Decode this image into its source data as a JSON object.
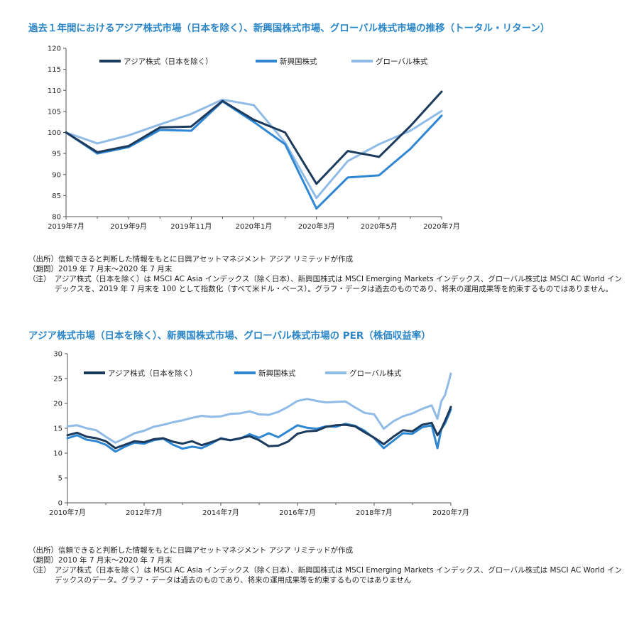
{
  "colors": {
    "asia": "#1b3a5c",
    "em": "#2f86d2",
    "global": "#8fbbe6",
    "title": "#2b86c8",
    "axis": "#555555"
  },
  "chart_data": [
    {
      "type": "line",
      "title": "過去１年間におけるアジア株式市場（日本を除く）、新興国株式市場、グローバル株式市場の推移（トータル・リターン）",
      "xlabel": "",
      "ylabel": "",
      "ylim": [
        80,
        120
      ],
      "yticks": [
        80,
        85,
        90,
        95,
        100,
        105,
        110,
        115,
        120
      ],
      "x_tick_labels": [
        "2019年7月",
        "2019年9月",
        "2019年11月",
        "2020年1月",
        "2020年3月",
        "2020年5月",
        "2020年7月"
      ],
      "x": [
        "2019-07",
        "2019-08",
        "2019-09",
        "2019-10",
        "2019-11",
        "2019-12",
        "2020-01",
        "2020-02",
        "2020-03",
        "2020-04",
        "2020-05",
        "2020-06",
        "2020-07"
      ],
      "legend_position": "top",
      "grid": false,
      "series": [
        {
          "name": "アジア株式（日本を除く）",
          "color_key": "asia",
          "values": [
            100,
            95.3,
            96.8,
            101.2,
            101.4,
            107.5,
            103.0,
            100.0,
            87.8,
            95.6,
            94.2,
            101.5,
            109.7
          ]
        },
        {
          "name": "新興国株式",
          "color_key": "em",
          "values": [
            100,
            95.0,
            96.5,
            100.6,
            100.4,
            107.4,
            102.5,
            97.2,
            81.9,
            89.3,
            89.8,
            96.1,
            104.0
          ]
        },
        {
          "name": "グローバル株式",
          "color_key": "global",
          "values": [
            100,
            97.4,
            99.3,
            101.9,
            104.4,
            107.8,
            106.5,
            97.6,
            84.4,
            93.2,
            97.2,
            100.4,
            105.1
          ]
        }
      ]
    },
    {
      "type": "line",
      "title": "アジア株式市場（日本を除く）、新興国株式市場、グローバル株式市場の PER（株価収益率）",
      "xlabel": "",
      "ylabel": "",
      "ylim": [
        0,
        30
      ],
      "yticks": [
        0,
        5,
        10,
        15,
        20,
        25,
        30
      ],
      "x_tick_labels": [
        "2010年7月",
        "2012年7月",
        "2014年7月",
        "2016年7月",
        "2018年7月",
        "2020年7月"
      ],
      "x": [
        2010.5,
        2010.75,
        2011.0,
        2011.25,
        2011.5,
        2011.75,
        2012.0,
        2012.25,
        2012.5,
        2012.75,
        2013.0,
        2013.25,
        2013.5,
        2013.75,
        2014.0,
        2014.25,
        2014.5,
        2014.75,
        2015.0,
        2015.25,
        2015.5,
        2015.75,
        2016.0,
        2016.25,
        2016.5,
        2016.75,
        2017.0,
        2017.25,
        2017.5,
        2017.75,
        2018.0,
        2018.25,
        2018.5,
        2018.75,
        2019.0,
        2019.25,
        2019.5,
        2019.75,
        2020.0,
        2020.15,
        2020.25,
        2020.35,
        2020.45,
        2020.5
      ],
      "legend_position": "top",
      "grid": false,
      "series": [
        {
          "name": "アジア株式（日本を除く）",
          "color_key": "asia",
          "values": [
            13.6,
            14.1,
            13.3,
            13.0,
            12.4,
            11.0,
            11.7,
            12.4,
            12.2,
            12.8,
            13.0,
            12.3,
            11.9,
            12.4,
            11.6,
            12.2,
            12.9,
            12.6,
            13.0,
            13.4,
            12.6,
            11.4,
            11.5,
            12.3,
            13.9,
            14.4,
            14.5,
            15.3,
            15.6,
            15.7,
            15.4,
            14.2,
            13.1,
            11.8,
            13.3,
            14.6,
            14.4,
            15.7,
            16.1,
            13.6,
            14.8,
            16.5,
            18.3,
            19.3
          ]
        },
        {
          "name": "新興国株式",
          "color_key": "em",
          "values": [
            13.0,
            13.6,
            12.7,
            12.4,
            11.7,
            10.3,
            11.3,
            12.1,
            11.9,
            12.6,
            12.9,
            11.7,
            10.9,
            11.3,
            11.0,
            11.9,
            13.0,
            12.6,
            12.9,
            13.8,
            13.1,
            14.0,
            13.2,
            14.4,
            15.6,
            15.1,
            14.9,
            15.4,
            15.3,
            15.9,
            15.5,
            14.5,
            13.0,
            11.0,
            12.5,
            14.0,
            13.9,
            15.2,
            15.6,
            11.0,
            14.8,
            16.0,
            17.8,
            18.8
          ]
        },
        {
          "name": "グローバル株式",
          "color_key": "global",
          "values": [
            15.4,
            15.6,
            15.0,
            14.6,
            13.3,
            12.1,
            13.0,
            14.0,
            14.5,
            15.3,
            15.7,
            16.2,
            16.6,
            17.1,
            17.5,
            17.3,
            17.4,
            17.9,
            18.0,
            18.4,
            17.8,
            17.7,
            18.3,
            19.3,
            20.5,
            20.9,
            20.5,
            20.2,
            20.3,
            20.4,
            19.2,
            18.1,
            17.8,
            14.9,
            16.4,
            17.4,
            18.0,
            18.9,
            19.6,
            16.9,
            20.4,
            21.7,
            24.5,
            26.0
          ]
        }
      ]
    }
  ],
  "notes1": [
    {
      "label": "（出所）",
      "text": "信頼できると判断した情報をもとに日興アセットマネジメント アジア リミテッドが作成"
    },
    {
      "label": "（期間）",
      "text": "2019 年 7 月末～2020 年 7 月末"
    },
    {
      "label": "（注）　",
      "text": "アジア株式（日本を除く）は MSCI AC Asia インデックス（除く日本）、新興国株式は MSCI Emerging Markets インデックス、グローバル株式は MSCI AC World インデックスを、2019 年 7 月末を 100 として指数化（すべて米ドル・ベース）。グラフ・データは過去のものであり、将来の運用成果等を約束するものではありません。"
    }
  ],
  "notes2": [
    {
      "label": "（出所）",
      "text": "信頼できると判断した情報をもとに日興アセットマネジメント アジア リミテッドが作成"
    },
    {
      "label": "（期間）",
      "text": "2010 年 7 月末～2020 年 7 月末"
    },
    {
      "label": "（注）　",
      "text": "アジア株式（日本を除く）は MSCI AC Asia インデックス（除く日本）、新興国株式は MSCI Emerging Markets インデックス、グローバル株式は MSCI AC World インデックスのデータ。グラフ・データは過去のものであり、将来の運用成果等を約束するものではありません"
    }
  ]
}
